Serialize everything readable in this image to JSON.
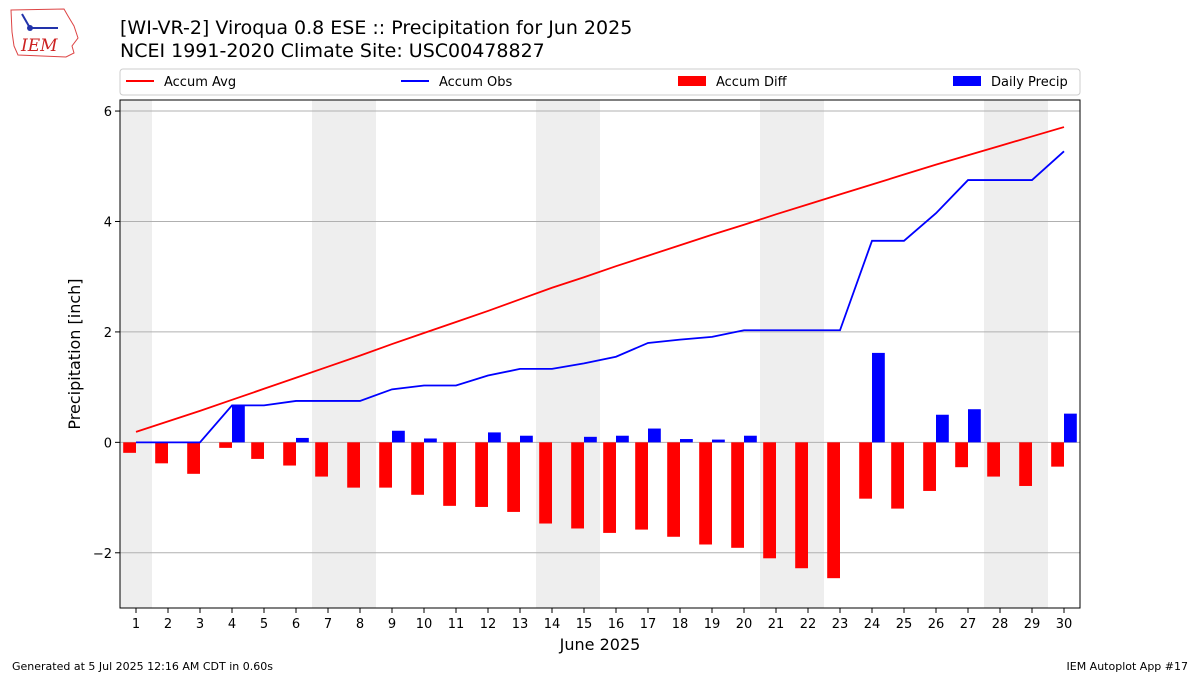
{
  "header": {
    "title_line1": "[WI-VR-2] Viroqua 0.8 ESE :: Precipitation for Jun 2025",
    "title_line2": "NCEI 1991-2020 Climate Site: USC00478827",
    "logo_text": "IEM"
  },
  "footer": {
    "generated": "Generated at 5 Jul 2025 12:16 AM CDT in 0.60s",
    "app": "IEM Autoplot App #17"
  },
  "colors": {
    "accum_avg": "#ff0000",
    "accum_obs": "#0000ff",
    "accum_diff": "#ff0000",
    "daily_precip": "#0000ff",
    "weekend_shade": "#eeeeee",
    "grid": "#b0b0b0"
  },
  "chart_data": {
    "type": "bar",
    "xlabel": "June 2025",
    "ylabel": "Precipitation [inch]",
    "ylim": [
      -3.0,
      6.2
    ],
    "yticks": [
      -2,
      0,
      2,
      4,
      6
    ],
    "ytick_labels": [
      "−2",
      "0",
      "2",
      "4",
      "6"
    ],
    "grid": "horizontal",
    "legend_position": "top",
    "days": [
      1,
      2,
      3,
      4,
      5,
      6,
      7,
      8,
      9,
      10,
      11,
      12,
      13,
      14,
      15,
      16,
      17,
      18,
      19,
      20,
      21,
      22,
      23,
      24,
      25,
      26,
      27,
      28,
      29,
      30
    ],
    "shaded_days": [
      [
        1,
        1
      ],
      [
        7,
        8
      ],
      [
        14,
        15
      ],
      [
        21,
        22
      ],
      [
        28,
        29
      ]
    ],
    "series": [
      {
        "name": "Accum Avg",
        "kind": "line",
        "values": [
          0.19,
          0.38,
          0.57,
          0.77,
          0.97,
          1.17,
          1.37,
          1.57,
          1.78,
          1.98,
          2.18,
          2.38,
          2.59,
          2.8,
          2.99,
          3.19,
          3.38,
          3.57,
          3.76,
          3.94,
          4.13,
          4.31,
          4.49,
          4.67,
          4.85,
          5.03,
          5.2,
          5.37,
          5.54,
          5.71
        ]
      },
      {
        "name": "Accum Obs",
        "kind": "line",
        "values": [
          0.0,
          0.0,
          0.0,
          0.67,
          0.67,
          0.75,
          0.75,
          0.75,
          0.96,
          1.03,
          1.03,
          1.21,
          1.33,
          1.33,
          1.43,
          1.55,
          1.8,
          1.86,
          1.91,
          2.03,
          2.03,
          2.03,
          2.03,
          3.65,
          3.65,
          4.15,
          4.75,
          4.75,
          4.75,
          5.27
        ]
      },
      {
        "name": "Accum Diff",
        "kind": "bar",
        "values": [
          -0.19,
          -0.38,
          -0.57,
          -0.1,
          -0.3,
          -0.42,
          -0.62,
          -0.82,
          -0.82,
          -0.95,
          -1.15,
          -1.17,
          -1.26,
          -1.47,
          -1.56,
          -1.64,
          -1.58,
          -1.71,
          -1.85,
          -1.91,
          -2.1,
          -2.28,
          -2.46,
          -1.02,
          -1.2,
          -0.88,
          -0.45,
          -0.62,
          -0.79,
          -0.44
        ]
      },
      {
        "name": "Daily Precip",
        "kind": "bar",
        "values": [
          0.0,
          0.0,
          0.0,
          0.67,
          0.0,
          0.08,
          0.0,
          0.0,
          0.21,
          0.07,
          0.0,
          0.18,
          0.12,
          0.0,
          0.1,
          0.12,
          0.25,
          0.06,
          0.05,
          0.12,
          0.0,
          0.0,
          0.0,
          1.62,
          0.0,
          0.5,
          0.6,
          0.0,
          0.0,
          0.52
        ]
      }
    ]
  }
}
